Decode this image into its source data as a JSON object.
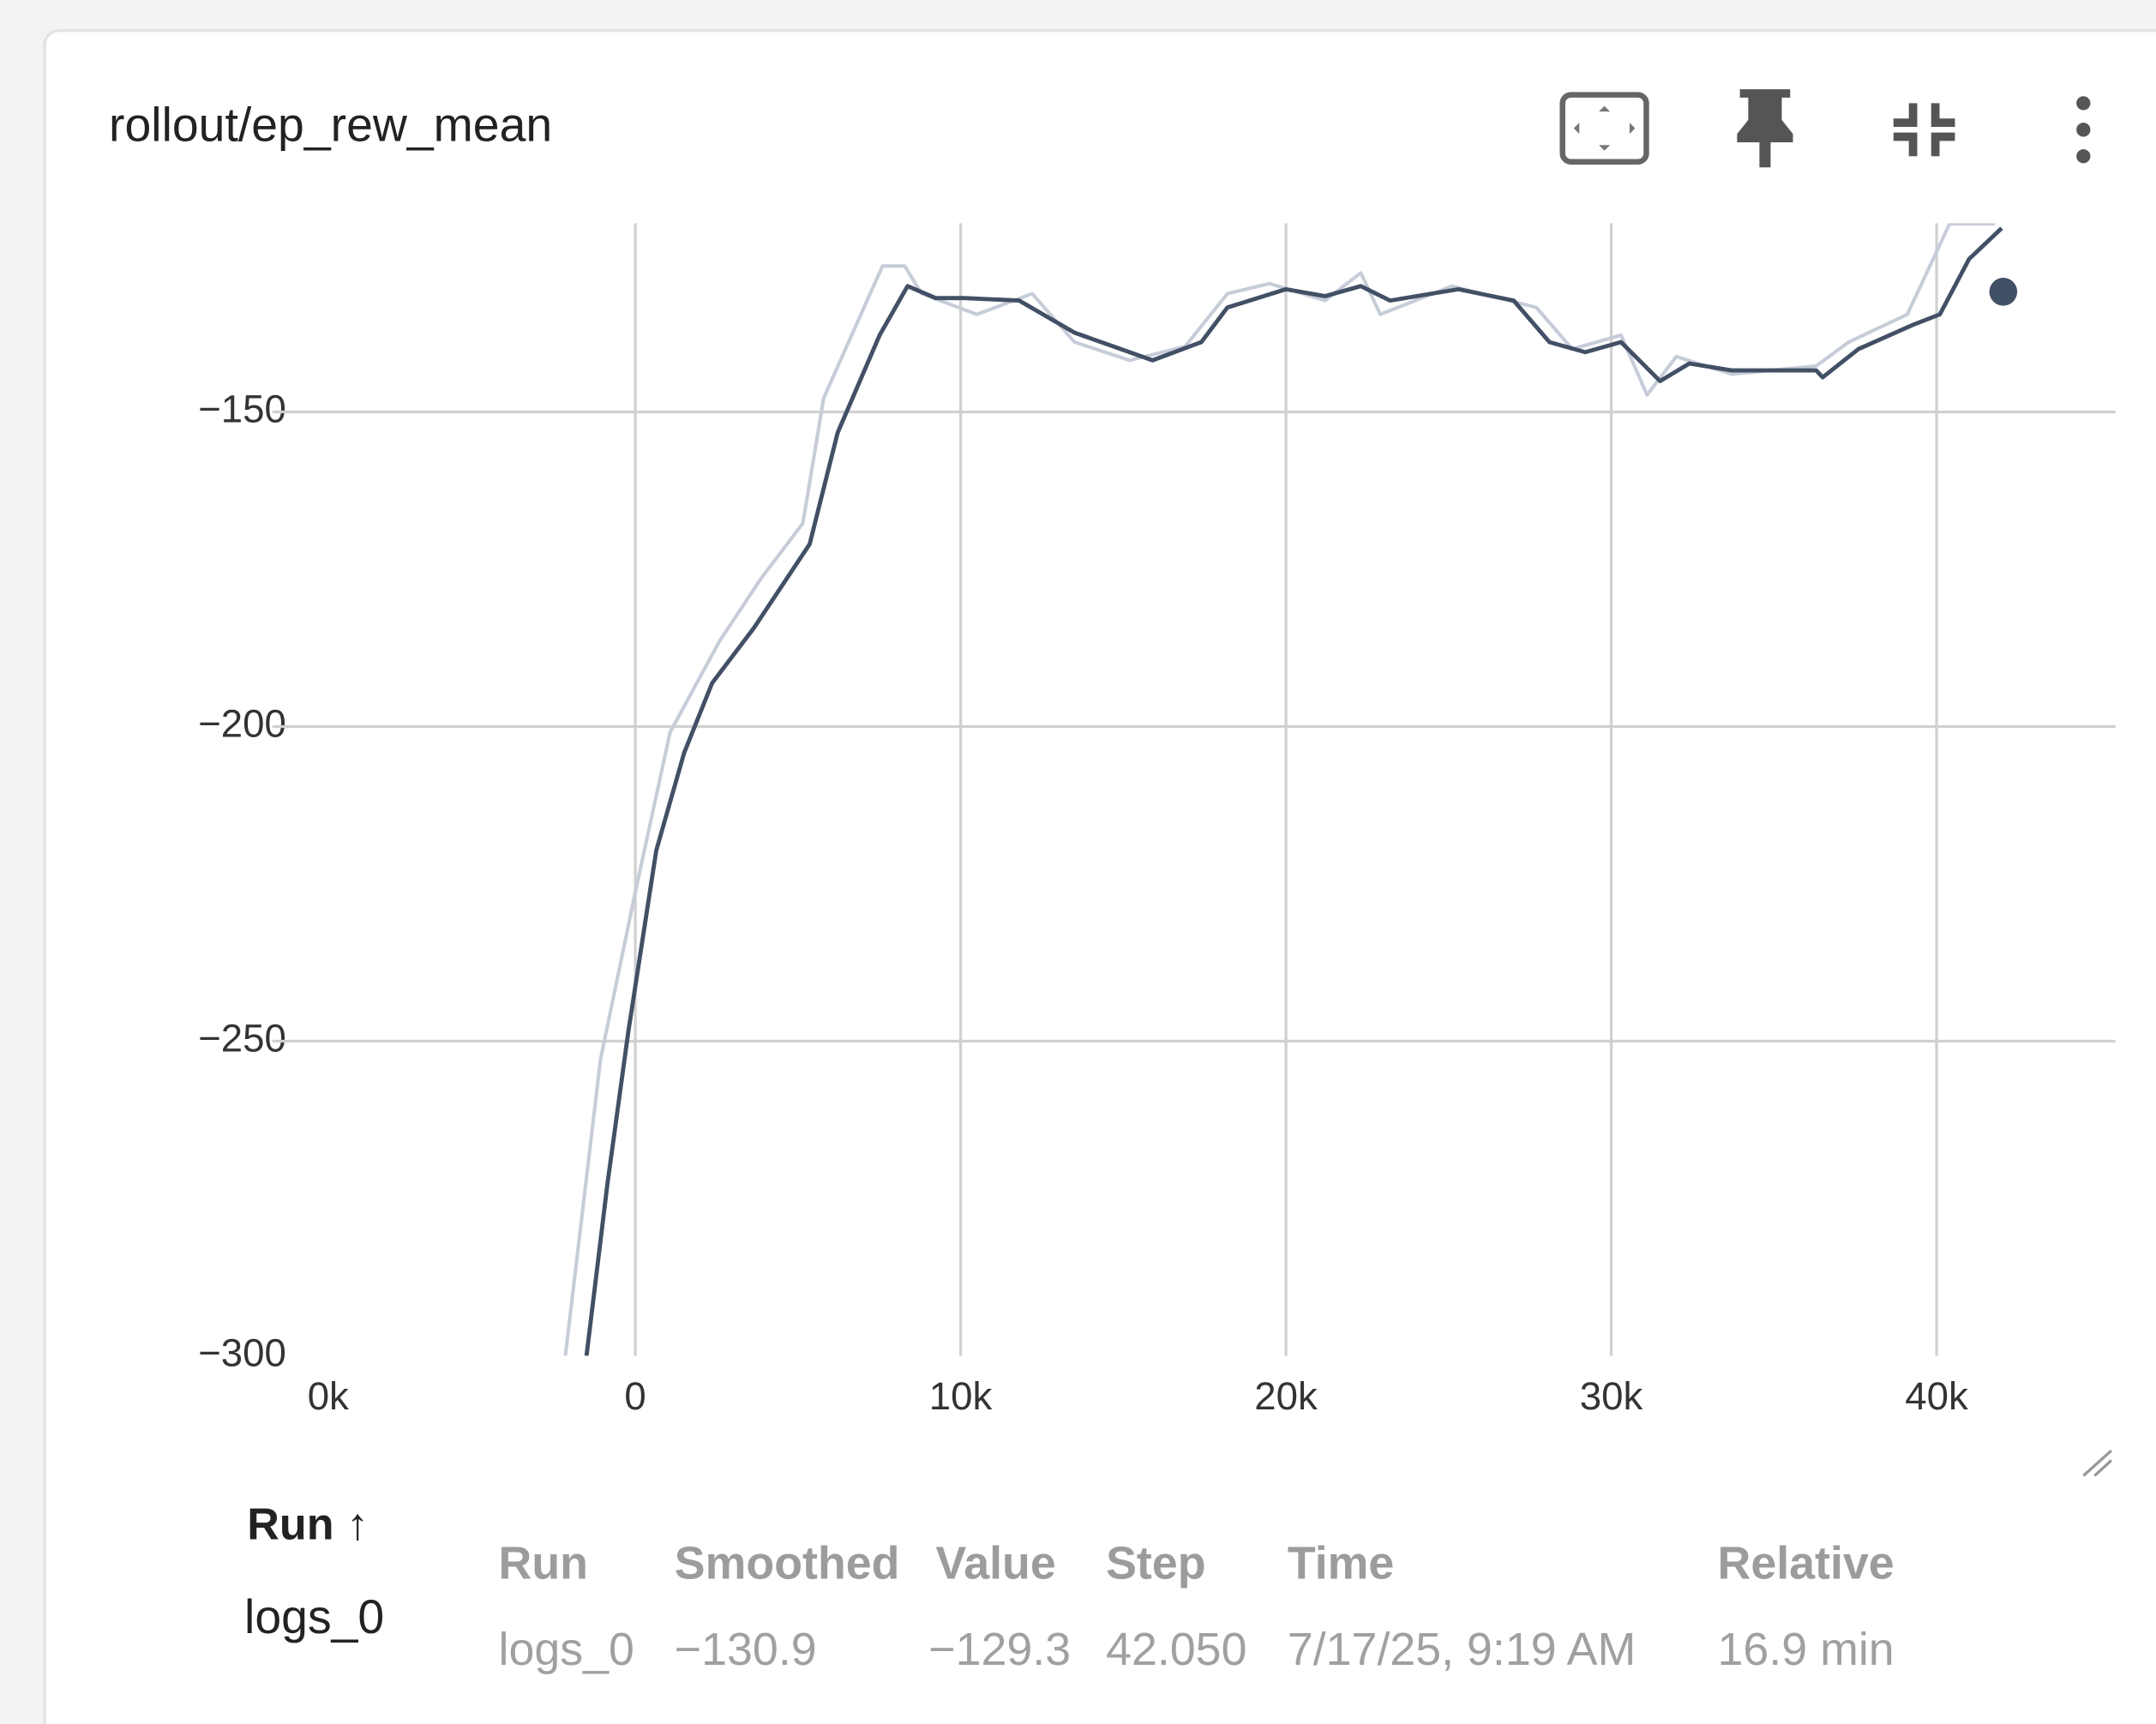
{
  "header": {
    "title": "rollout/ep_rew_mean"
  },
  "chart_data": {
    "type": "line",
    "xlim": [
      -10000,
      45500
    ],
    "ylim": [
      -300,
      -120
    ],
    "xticks": [
      {
        "value": -10000,
        "label": "0k"
      },
      0,
      {
        "value": 10000,
        "label": "10k"
      },
      {
        "value": 20000,
        "label": "20k"
      },
      {
        "value": 30000,
        "label": "30k"
      },
      {
        "value": 40000,
        "label": "40k"
      }
    ],
    "yticks": [
      {
        "value": -300,
        "label": "−300"
      },
      {
        "value": -250,
        "label": "−250"
      },
      {
        "value": -200,
        "label": "−200"
      },
      {
        "value": -150,
        "label": "−150"
      }
    ],
    "grid": true,
    "series": [
      {
        "color": "#c6ccd8",
        "x": [
          -2150,
          -1070,
          0,
          1070,
          2580,
          3860,
          5150,
          5790,
          6650,
          7600,
          8280,
          8800,
          10500,
          12200,
          13500,
          15200,
          16900,
          18200,
          19500,
          21200,
          22300,
          22900,
          25100,
          27700,
          28800,
          30300,
          31100,
          32000,
          33700,
          36300,
          37300,
          39100,
          40400,
          41800
        ],
        "values": [
          -300,
          -252.9,
          -226.3,
          -200.9,
          -186.5,
          -176.5,
          -167.7,
          -147.8,
          -137.8,
          -126.8,
          -126.8,
          -131.2,
          -134.5,
          -131.2,
          -138.9,
          -141.8,
          -139.6,
          -131.2,
          -129.6,
          -132.3,
          -127.9,
          -134.5,
          -130,
          -133.4,
          -140,
          -137.8,
          -147.3,
          -141.2,
          -144,
          -142.7,
          -138.9,
          -134.5,
          -120.1,
          -120.1
        ]
      },
      {
        "color": "#425066",
        "x": [
          -1500,
          -860,
          -215,
          644,
          1500,
          2360,
          3650,
          5360,
          6220,
          7510,
          8370,
          9230,
          10100,
          11800,
          13500,
          15900,
          17400,
          18200,
          20000,
          21200,
          22300,
          23200,
          25300,
          27000,
          28100,
          29200,
          30300,
          31500,
          32400,
          33700,
          36300,
          36500,
          37600,
          39300,
          40100,
          41000,
          42000
        ],
        "values": [
          -300,
          -272.8,
          -248.5,
          -219.7,
          -204.2,
          -193.1,
          -184.3,
          -171,
          -153.3,
          -137.8,
          -130,
          -131.9,
          -131.9,
          -132.3,
          -137.4,
          -141.8,
          -138.9,
          -133.4,
          -130.5,
          -131.6,
          -130,
          -132.3,
          -130.5,
          -132.3,
          -138.9,
          -140.5,
          -138.9,
          -145.1,
          -142.3,
          -143.4,
          -143.4,
          -144.5,
          -140,
          -136.1,
          -134.5,
          -125.7,
          -120.8
        ]
      }
    ],
    "cursor": {
      "x": 42050,
      "y": -130.9,
      "color": "#425066"
    }
  },
  "runs": {
    "header": "Run ↑",
    "items": [
      "logs_0"
    ]
  },
  "table": {
    "headers": [
      "Run",
      "Smoothed",
      "Value",
      "Step",
      "Time",
      "Relative"
    ],
    "rows": [
      [
        "logs_0",
        "−130.9",
        "−129.3",
        "42.050",
        "7/17/25, 9:19 AM",
        "16.9 min"
      ]
    ]
  }
}
